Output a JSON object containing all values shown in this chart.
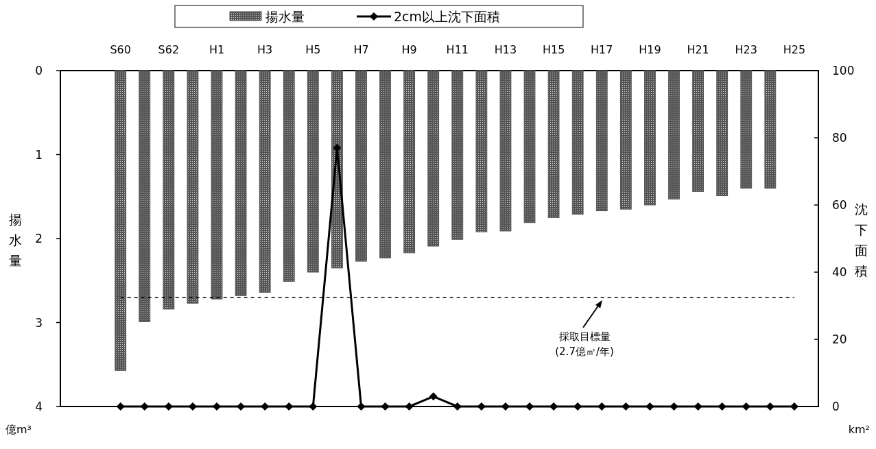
{
  "chart_data": {
    "type": "bar",
    "categories": [
      "S60",
      null,
      "S62",
      null,
      "H1",
      null,
      "H3",
      null,
      "H5",
      null,
      "H7",
      null,
      "H9",
      null,
      "H11",
      null,
      "H13",
      null,
      "H15",
      null,
      "H17",
      null,
      "H19",
      null,
      "H21",
      null,
      "H23",
      null,
      "H25"
    ],
    "series": [
      {
        "name": "揚水量",
        "color": "#555555",
        "values": [
          3.57,
          2.99,
          2.84,
          2.77,
          2.72,
          2.68,
          2.64,
          2.51,
          2.4,
          2.35,
          2.27,
          2.23,
          2.17,
          2.09,
          2.01,
          1.92,
          1.91,
          1.81,
          1.75,
          1.71,
          1.67,
          1.65,
          1.6,
          1.53,
          1.44,
          1.49,
          1.4,
          1.4,
          null
        ]
      },
      {
        "name": "2cm以上沈下面積",
        "type": "line",
        "axis": "y2",
        "color": "#000000",
        "marker": "diamond",
        "line_style": "solid",
        "values": [
          0,
          0,
          0,
          0,
          0,
          0,
          0,
          0,
          0,
          77,
          0,
          0,
          0,
          3,
          0,
          0,
          0,
          0,
          0,
          0,
          0,
          0,
          0,
          0,
          0,
          0,
          0,
          0,
          0
        ]
      }
    ],
    "ylim": [
      4,
      0
    ],
    "yticks": [
      0,
      1,
      2,
      3,
      4
    ],
    "y2lim": [
      0,
      100
    ],
    "y2ticks": [
      0,
      20,
      40,
      60,
      80,
      100
    ],
    "ylabel": "揚水量",
    "y2label": "沈下面積",
    "annotations": [
      "億m³",
      "km²",
      "採取目標量\n(2.7億㎥/年)"
    ],
    "ref_lines": [
      {
        "axis": "y",
        "value": 2.7,
        "color": "#000000",
        "line_style": "dashed"
      }
    ],
    "legend": "top",
    "grid": false
  }
}
